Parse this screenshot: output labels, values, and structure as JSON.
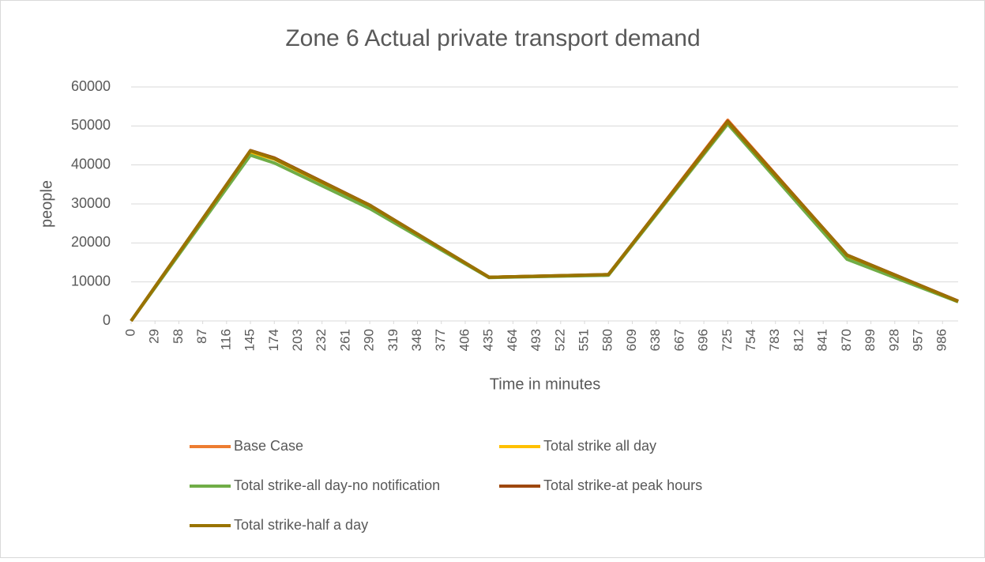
{
  "chart_data": {
    "type": "line",
    "title": "Zone 6 Actual private transport demand",
    "x_label": "Time in minutes",
    "y_label": "people",
    "xlim": [
      0,
      1005
    ],
    "ylim": [
      0,
      60000
    ],
    "yticks": [
      0,
      10000,
      20000,
      30000,
      40000,
      50000,
      60000
    ],
    "xticks": [
      0,
      29,
      58,
      87,
      116,
      145,
      174,
      203,
      232,
      261,
      290,
      319,
      348,
      377,
      406,
      435,
      464,
      493,
      522,
      551,
      580,
      609,
      638,
      667,
      696,
      725,
      754,
      783,
      812,
      841,
      870,
      899,
      928,
      957,
      986
    ],
    "grid": true,
    "legend": "bottom",
    "series": [
      {
        "name": "Base Case",
        "color": "#ed7d31",
        "x": [
          0,
          145,
          174,
          290,
          435,
          580,
          725,
          870,
          1005
        ],
        "values": [
          0,
          43500,
          41800,
          29500,
          11200,
          11800,
          51500,
          16800,
          5000
        ]
      },
      {
        "name": "Total strike all day",
        "color": "#ffc000",
        "x": [
          0,
          145,
          174,
          290,
          435,
          580,
          725,
          870,
          1005
        ],
        "values": [
          0,
          43200,
          41500,
          29300,
          11200,
          11800,
          51000,
          16500,
          5000
        ]
      },
      {
        "name": "Total strike-all day-no notification",
        "color": "#70ad47",
        "x": [
          0,
          145,
          174,
          290,
          435,
          580,
          725,
          870,
          1005
        ],
        "values": [
          0,
          42500,
          40500,
          28800,
          11100,
          11700,
          50500,
          15800,
          4900
        ]
      },
      {
        "name": "Total strike-at peak hours",
        "color": "#9e480e",
        "x": [
          0,
          145,
          174,
          290,
          435,
          580,
          725,
          870,
          1005
        ],
        "values": [
          0,
          43700,
          41800,
          29700,
          11200,
          11900,
          51200,
          16900,
          5100
        ]
      },
      {
        "name": "Total strike-half a day",
        "color": "#997300",
        "x": [
          0,
          145,
          174,
          290,
          435,
          580,
          725,
          870,
          1005
        ],
        "values": [
          0,
          43600,
          41600,
          29600,
          11200,
          11900,
          51000,
          16800,
          5000
        ]
      }
    ]
  }
}
